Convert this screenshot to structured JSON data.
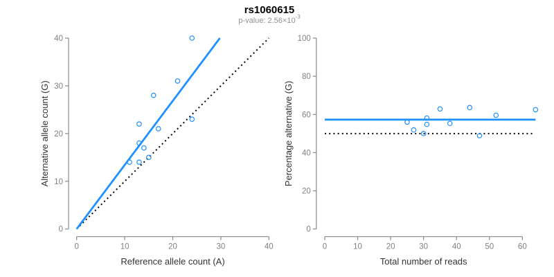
{
  "header": {
    "title": "rs1060615",
    "p_value_prefix": "p-value: 2.56×10",
    "p_value_exponent": "-3"
  },
  "colors": {
    "accent_blue": "#1E90FF",
    "reference_black": "#000000",
    "axis_gray": "#888888",
    "tick_label_gray": "#808080",
    "axis_title_color": "#333333"
  },
  "chart_data": [
    {
      "type": "scatter",
      "panel": "left",
      "xlabel": "Reference allele count (A)",
      "ylabel": "Alternative allele count (G)",
      "xlim": [
        0,
        40
      ],
      "ylim": [
        0,
        40
      ],
      "xticks": [
        0,
        10,
        20,
        30,
        40
      ],
      "yticks": [
        0,
        10,
        20,
        30,
        40
      ],
      "grid": false,
      "legend": "none",
      "point_style": "open-circle",
      "points": [
        [
          11,
          14
        ],
        [
          13,
          14
        ],
        [
          13,
          18
        ],
        [
          13,
          22
        ],
        [
          14,
          17
        ],
        [
          15,
          15
        ],
        [
          16,
          28
        ],
        [
          17,
          21
        ],
        [
          21,
          31
        ],
        [
          24,
          23
        ],
        [
          24,
          40
        ]
      ],
      "fit_line": {
        "x1": 0,
        "y1": 0,
        "x2": 29.8,
        "y2": 40,
        "style": "solid"
      },
      "reference_line": {
        "x1": 0,
        "y1": 0,
        "x2": 40,
        "y2": 40,
        "style": "dotted"
      }
    },
    {
      "type": "scatter",
      "panel": "right",
      "xlabel": "Total number of reads",
      "ylabel": "Percentage alternative (G)",
      "xlim": [
        0,
        64
      ],
      "ylim": [
        0,
        100
      ],
      "xticks": [
        0,
        10,
        20,
        30,
        40,
        50,
        60
      ],
      "yticks": [
        0,
        20,
        40,
        60,
        80,
        100
      ],
      "grid": false,
      "legend": "none",
      "point_style": "open-circle",
      "points": [
        [
          25,
          56.0
        ],
        [
          27,
          51.9
        ],
        [
          30,
          50.0
        ],
        [
          31,
          54.8
        ],
        [
          31,
          58.1
        ],
        [
          35,
          62.9
        ],
        [
          38,
          55.3
        ],
        [
          44,
          63.6
        ],
        [
          47,
          48.9
        ],
        [
          52,
          59.6
        ],
        [
          64,
          62.5
        ]
      ],
      "fit_line": {
        "x1": 0,
        "y1": 57.3,
        "x2": 64,
        "y2": 57.3,
        "style": "solid"
      },
      "reference_line": {
        "x1": 0,
        "y1": 50,
        "x2": 63,
        "y2": 50,
        "style": "dotted"
      }
    }
  ]
}
